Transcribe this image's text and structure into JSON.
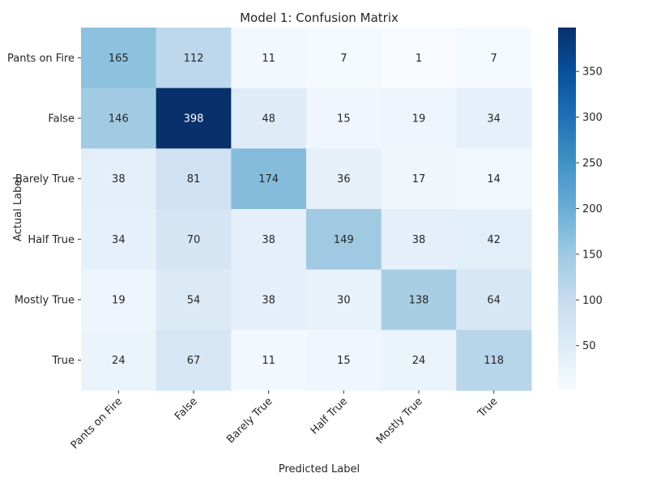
{
  "chart_data": {
    "type": "heatmap",
    "title": "Model 1: Confusion Matrix",
    "xlabel": "Predicted Label",
    "ylabel": "Actual Label",
    "x_categories": [
      "Pants on Fire",
      "False",
      "Barely True",
      "Half True",
      "Mostly True",
      "True"
    ],
    "y_categories": [
      "Pants on Fire",
      "False",
      "Barely True",
      "Half True",
      "Mostly True",
      "True"
    ],
    "values": [
      [
        165,
        112,
        11,
        7,
        1,
        7
      ],
      [
        146,
        398,
        48,
        15,
        19,
        34
      ],
      [
        38,
        81,
        174,
        36,
        17,
        14
      ],
      [
        34,
        70,
        38,
        149,
        38,
        42
      ],
      [
        19,
        54,
        38,
        30,
        138,
        64
      ],
      [
        24,
        67,
        11,
        15,
        24,
        118
      ]
    ],
    "colormap": "Blues",
    "colorbar": {
      "range": [
        1,
        398
      ],
      "ticks": [
        50,
        100,
        150,
        200,
        250,
        300,
        350
      ]
    },
    "annotations": true
  }
}
